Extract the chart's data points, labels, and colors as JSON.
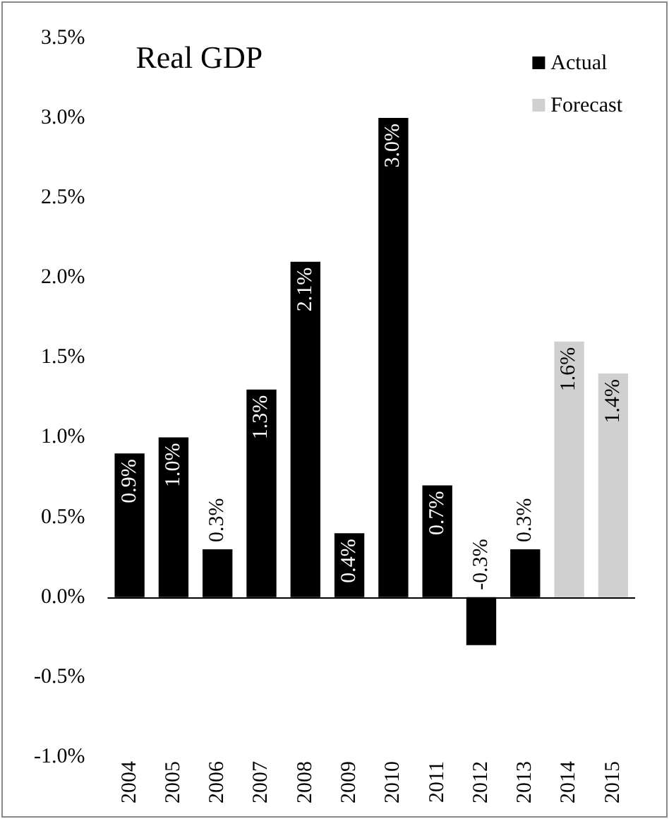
{
  "chart_data": {
    "type": "bar",
    "title": "Real GDP",
    "categories": [
      "2004",
      "2005",
      "2006",
      "2007",
      "2008",
      "2009",
      "2010",
      "2011",
      "2012",
      "2013",
      "2014",
      "2015"
    ],
    "series": [
      {
        "name": "Actual",
        "color": "#000000",
        "values": [
          0.9,
          1.0,
          0.3,
          1.3,
          2.1,
          0.4,
          3.0,
          0.7,
          -0.3,
          0.3,
          null,
          null
        ],
        "value_labels": [
          "0.9%",
          "1.0%",
          "0.3%",
          "1.3%",
          "2.1%",
          "0.4%",
          "3.0%",
          "0.7%",
          "-0.3%",
          "0.3%",
          null,
          null
        ]
      },
      {
        "name": "Forecast",
        "color": "#d0d0d0",
        "values": [
          null,
          null,
          null,
          null,
          null,
          null,
          null,
          null,
          null,
          null,
          1.6,
          1.4
        ],
        "value_labels": [
          null,
          null,
          null,
          null,
          null,
          null,
          null,
          null,
          null,
          null,
          "1.6%",
          "1.4%"
        ]
      }
    ],
    "ylim": [
      -1.0,
      3.5
    ],
    "yticks": [
      {
        "value": -1.0,
        "label": "-1.0%"
      },
      {
        "value": -0.5,
        "label": "-0.5%"
      },
      {
        "value": 0,
        "label": "0.0%"
      },
      {
        "value": 0.5,
        "label": "0.5%"
      },
      {
        "value": 1.0,
        "label": "1.0%"
      },
      {
        "value": 1.5,
        "label": "1.5%"
      },
      {
        "value": 2.0,
        "label": "2.0%"
      },
      {
        "value": 2.5,
        "label": "2.5%"
      },
      {
        "value": 3.0,
        "label": "3.0%"
      },
      {
        "value": 3.5,
        "label": "3.5%"
      }
    ],
    "ref_lines": [
      {
        "axis": "y",
        "value": 0,
        "color": "#000000"
      }
    ],
    "grid": false,
    "legend": "top right"
  }
}
